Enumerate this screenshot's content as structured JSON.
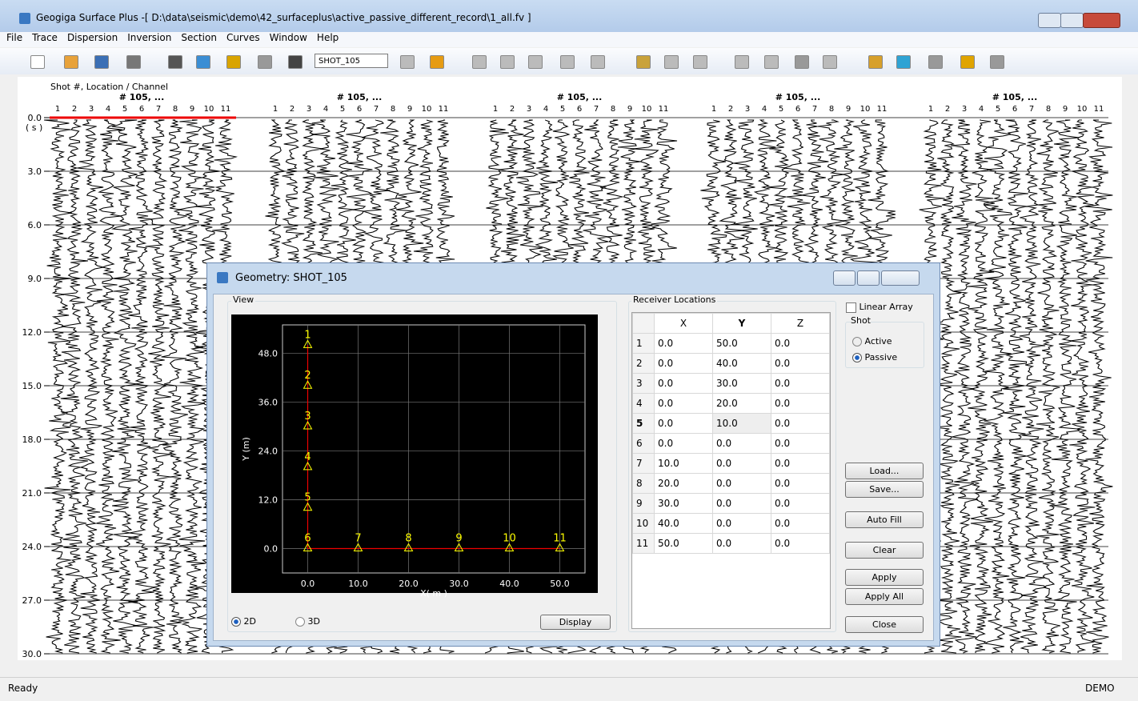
{
  "window": {
    "title": "Geogiga Surface Plus -[ D:\\data\\seismic\\demo\\42_surfaceplus\\active_passive_different_record\\1_all.fv ]"
  },
  "menu": [
    "File",
    "Trace",
    "Dispersion",
    "Inversion",
    "Section",
    "Curves",
    "Window",
    "Help"
  ],
  "toolbar": {
    "shot": "SHOT_105"
  },
  "section": {
    "header": "Shot #, Location / Channel",
    "panels": [
      "# 105, ...",
      "# 105, ...",
      "# 105, ...",
      "# 105, ...",
      "# 105, ..."
    ],
    "channels": [
      1,
      2,
      3,
      4,
      5,
      6,
      7,
      8,
      9,
      10,
      11
    ],
    "time_unit": "( s )",
    "tlim": [
      0,
      30
    ],
    "time_ticks": [
      {
        "value": 0,
        "label": "0.0"
      },
      {
        "value": 3,
        "label": "3.0"
      },
      {
        "value": 6,
        "label": "6.0"
      },
      {
        "value": 9,
        "label": "9.0"
      },
      {
        "value": 12,
        "label": "12.0"
      },
      {
        "value": 15,
        "label": "15.0"
      },
      {
        "value": 18,
        "label": "18.0"
      },
      {
        "value": 21,
        "label": "21.0"
      },
      {
        "value": 24,
        "label": "24.0"
      },
      {
        "value": 27,
        "label": "27.0"
      },
      {
        "value": 30,
        "label": "30.0"
      }
    ]
  },
  "dialog": {
    "title": "Geometry: SHOT_105",
    "view_label": "View",
    "plot": {
      "xlabel": "X( m )",
      "ylabel": "Y (m)",
      "xlim": [
        -5,
        55
      ],
      "ylim": [
        -6,
        55
      ],
      "xticks": [
        {
          "value": 0,
          "label": "0.0"
        },
        {
          "value": 10,
          "label": "10.0"
        },
        {
          "value": 20,
          "label": "20.0"
        },
        {
          "value": 30,
          "label": "30.0"
        },
        {
          "value": 40,
          "label": "40.0"
        },
        {
          "value": 50,
          "label": "50.0"
        }
      ],
      "yticks": [
        {
          "value": 0,
          "label": "0.0"
        },
        {
          "value": 12,
          "label": "12.0"
        },
        {
          "value": 24,
          "label": "24.0"
        },
        {
          "value": 36,
          "label": "36.0"
        },
        {
          "value": 48,
          "label": "48.0"
        }
      ],
      "points": {
        "labels": [
          1,
          2,
          3,
          4,
          5,
          6,
          7,
          8,
          9,
          10,
          11
        ],
        "x": [
          0,
          0,
          0,
          0,
          0,
          0,
          10,
          20,
          30,
          40,
          50
        ],
        "y": [
          50,
          40,
          30,
          20,
          10,
          0,
          0,
          0,
          0,
          0,
          0
        ]
      }
    },
    "view_modes": [
      "2D",
      "3D"
    ],
    "display_button": "Display",
    "table": {
      "title": "Receiver Locations",
      "headers": [
        "X",
        "Y",
        "Z"
      ],
      "rows": [
        [
          "1",
          "0.0",
          "50.0",
          "0.0"
        ],
        [
          "2",
          "0.0",
          "40.0",
          "0.0"
        ],
        [
          "3",
          "0.0",
          "30.0",
          "0.0"
        ],
        [
          "4",
          "0.0",
          "20.0",
          "0.0"
        ],
        [
          "5",
          "0.0",
          "10.0",
          "0.0"
        ],
        [
          "6",
          "0.0",
          "0.0",
          "0.0"
        ],
        [
          "7",
          "10.0",
          "0.0",
          "0.0"
        ],
        [
          "8",
          "20.0",
          "0.0",
          "0.0"
        ],
        [
          "9",
          "30.0",
          "0.0",
          "0.0"
        ],
        [
          "10",
          "40.0",
          "0.0",
          "0.0"
        ],
        [
          "11",
          "50.0",
          "0.0",
          "0.0"
        ]
      ]
    },
    "linear_array": "Linear Array",
    "shot_group": "Shot",
    "shot_options": [
      "Active",
      "Passive"
    ],
    "buttons": [
      "Load...",
      "Save...",
      "Auto Fill",
      "Clear",
      "Apply",
      "Apply All",
      "Close"
    ]
  },
  "status": {
    "left": "Ready",
    "right": "DEMO"
  }
}
